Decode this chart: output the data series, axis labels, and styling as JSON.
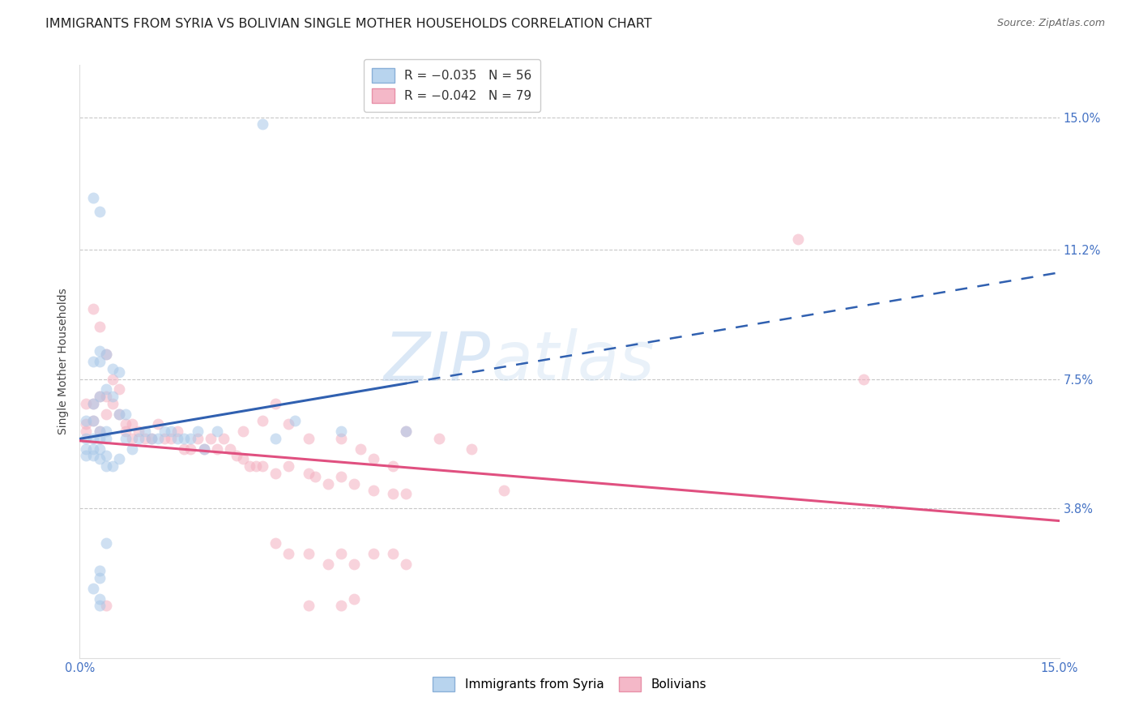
{
  "title": "IMMIGRANTS FROM SYRIA VS BOLIVIAN SINGLE MOTHER HOUSEHOLDS CORRELATION CHART",
  "source": "Source: ZipAtlas.com",
  "ylabel": "Single Mother Households",
  "ylabel_tick_vals": [
    0.038,
    0.075,
    0.112,
    0.15
  ],
  "ylabel_tick_labels": [
    "3.8%",
    "7.5%",
    "11.2%",
    "15.0%"
  ],
  "xtick_vals": [
    0.0,
    0.15
  ],
  "xtick_labels": [
    "0.0%",
    "15.0%"
  ],
  "xlim": [
    0.0,
    0.15
  ],
  "ylim": [
    -0.005,
    0.165
  ],
  "syria_color": "#a8c8e8",
  "bolivia_color": "#f4b0c0",
  "syria_line_color": "#3060b0",
  "bolivia_line_color": "#e05080",
  "background_color": "#ffffff",
  "grid_color": "#c8c8c8",
  "title_fontsize": 11.5,
  "source_fontsize": 9,
  "axis_label_fontsize": 10,
  "tick_fontsize": 10.5,
  "tick_color": "#4472c4",
  "watermark_color": "#b8d8f0",
  "watermark_alpha": 0.4,
  "syria_N": 56,
  "bolivia_N": 79,
  "marker_size": 100,
  "marker_alpha": 0.55,
  "syria_points": [
    [
      0.002,
      0.127
    ],
    [
      0.003,
      0.123
    ],
    [
      0.002,
      0.08
    ],
    [
      0.003,
      0.08
    ],
    [
      0.003,
      0.083
    ],
    [
      0.004,
      0.082
    ],
    [
      0.005,
      0.078
    ],
    [
      0.006,
      0.077
    ],
    [
      0.004,
      0.072
    ],
    [
      0.003,
      0.07
    ],
    [
      0.005,
      0.07
    ],
    [
      0.002,
      0.068
    ],
    [
      0.006,
      0.065
    ],
    [
      0.007,
      0.065
    ],
    [
      0.001,
      0.063
    ],
    [
      0.002,
      0.063
    ],
    [
      0.003,
      0.06
    ],
    [
      0.004,
      0.06
    ],
    [
      0.001,
      0.058
    ],
    [
      0.003,
      0.058
    ],
    [
      0.002,
      0.058
    ],
    [
      0.004,
      0.058
    ],
    [
      0.001,
      0.055
    ],
    [
      0.002,
      0.055
    ],
    [
      0.003,
      0.055
    ],
    [
      0.004,
      0.053
    ],
    [
      0.001,
      0.053
    ],
    [
      0.002,
      0.053
    ],
    [
      0.003,
      0.052
    ],
    [
      0.004,
      0.05
    ],
    [
      0.005,
      0.05
    ],
    [
      0.006,
      0.052
    ],
    [
      0.007,
      0.058
    ],
    [
      0.008,
      0.055
    ],
    [
      0.009,
      0.058
    ],
    [
      0.01,
      0.06
    ],
    [
      0.011,
      0.058
    ],
    [
      0.012,
      0.058
    ],
    [
      0.013,
      0.06
    ],
    [
      0.014,
      0.06
    ],
    [
      0.015,
      0.058
    ],
    [
      0.016,
      0.058
    ],
    [
      0.017,
      0.058
    ],
    [
      0.018,
      0.06
    ],
    [
      0.019,
      0.055
    ],
    [
      0.021,
      0.06
    ],
    [
      0.028,
      0.148
    ],
    [
      0.03,
      0.058
    ],
    [
      0.033,
      0.063
    ],
    [
      0.04,
      0.06
    ],
    [
      0.05,
      0.06
    ],
    [
      0.003,
      0.02
    ],
    [
      0.003,
      0.012
    ],
    [
      0.004,
      0.028
    ],
    [
      0.003,
      0.01
    ],
    [
      0.003,
      0.018
    ],
    [
      0.002,
      0.015
    ]
  ],
  "bolivia_points": [
    [
      0.001,
      0.062
    ],
    [
      0.002,
      0.063
    ],
    [
      0.001,
      0.06
    ],
    [
      0.003,
      0.06
    ],
    [
      0.002,
      0.068
    ],
    [
      0.001,
      0.068
    ],
    [
      0.003,
      0.07
    ],
    [
      0.004,
      0.065
    ],
    [
      0.002,
      0.095
    ],
    [
      0.003,
      0.09
    ],
    [
      0.004,
      0.082
    ],
    [
      0.005,
      0.075
    ],
    [
      0.006,
      0.072
    ],
    [
      0.004,
      0.07
    ],
    [
      0.005,
      0.068
    ],
    [
      0.006,
      0.065
    ],
    [
      0.007,
      0.062
    ],
    [
      0.008,
      0.062
    ],
    [
      0.007,
      0.06
    ],
    [
      0.008,
      0.058
    ],
    [
      0.009,
      0.06
    ],
    [
      0.01,
      0.058
    ],
    [
      0.011,
      0.058
    ],
    [
      0.012,
      0.062
    ],
    [
      0.013,
      0.058
    ],
    [
      0.014,
      0.058
    ],
    [
      0.015,
      0.06
    ],
    [
      0.016,
      0.055
    ],
    [
      0.017,
      0.055
    ],
    [
      0.018,
      0.058
    ],
    [
      0.019,
      0.055
    ],
    [
      0.02,
      0.058
    ],
    [
      0.021,
      0.055
    ],
    [
      0.022,
      0.058
    ],
    [
      0.023,
      0.055
    ],
    [
      0.024,
      0.053
    ],
    [
      0.025,
      0.052
    ],
    [
      0.026,
      0.05
    ],
    [
      0.027,
      0.05
    ],
    [
      0.028,
      0.05
    ],
    [
      0.03,
      0.048
    ],
    [
      0.032,
      0.05
    ],
    [
      0.035,
      0.048
    ],
    [
      0.036,
      0.047
    ],
    [
      0.038,
      0.045
    ],
    [
      0.04,
      0.047
    ],
    [
      0.042,
      0.045
    ],
    [
      0.045,
      0.043
    ],
    [
      0.048,
      0.042
    ],
    [
      0.05,
      0.042
    ],
    [
      0.025,
      0.06
    ],
    [
      0.028,
      0.063
    ],
    [
      0.03,
      0.068
    ],
    [
      0.032,
      0.062
    ],
    [
      0.035,
      0.058
    ],
    [
      0.04,
      0.058
    ],
    [
      0.043,
      0.055
    ],
    [
      0.045,
      0.052
    ],
    [
      0.048,
      0.05
    ],
    [
      0.05,
      0.06
    ],
    [
      0.055,
      0.058
    ],
    [
      0.06,
      0.055
    ],
    [
      0.065,
      0.043
    ],
    [
      0.11,
      0.115
    ],
    [
      0.12,
      0.075
    ],
    [
      0.03,
      0.028
    ],
    [
      0.032,
      0.025
    ],
    [
      0.035,
      0.025
    ],
    [
      0.038,
      0.022
    ],
    [
      0.04,
      0.025
    ],
    [
      0.042,
      0.022
    ],
    [
      0.045,
      0.025
    ],
    [
      0.048,
      0.025
    ],
    [
      0.05,
      0.022
    ],
    [
      0.035,
      0.01
    ],
    [
      0.04,
      0.01
    ],
    [
      0.042,
      0.012
    ],
    [
      0.004,
      0.01
    ]
  ]
}
